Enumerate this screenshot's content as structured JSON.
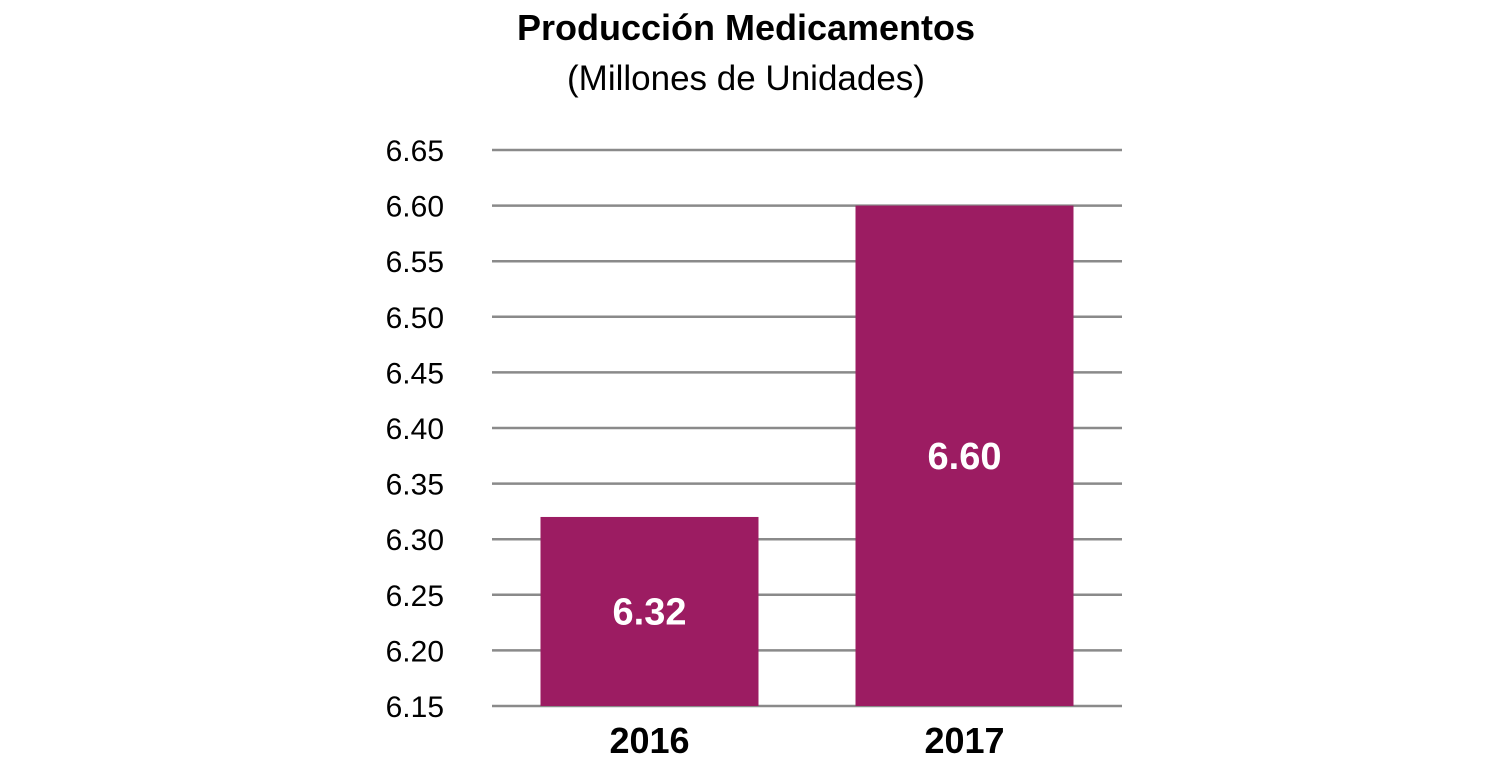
{
  "chart_data": {
    "type": "bar",
    "title": "Producción Medicamentos",
    "subtitle": "(Millones de Unidades)",
    "xlabel": "",
    "ylabel": "",
    "categories": [
      "2016",
      "2017"
    ],
    "series": [
      {
        "values": [
          6.32,
          6.6
        ],
        "data_labels": [
          "6.32",
          "6.60"
        ],
        "color": "#9c1c62"
      }
    ],
    "ylim": [
      6.15,
      6.65
    ],
    "yticks": [
      6.15,
      6.2,
      6.25,
      6.3,
      6.35,
      6.4,
      6.45,
      6.5,
      6.55,
      6.6,
      6.65
    ],
    "ytick_labels": [
      "6.15",
      "6.20",
      "6.25",
      "6.30",
      "6.35",
      "6.40",
      "6.45",
      "6.50",
      "6.55",
      "6.60",
      "6.65"
    ],
    "grid": true,
    "gridline_color": "#8a8a8a",
    "legend": "none"
  }
}
